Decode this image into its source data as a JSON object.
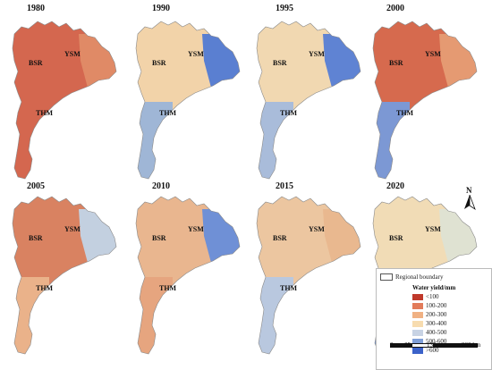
{
  "panels": [
    {
      "year": "1980",
      "labels": [
        "BSR",
        "YSM",
        "THM"
      ],
      "upper": "#d4674f",
      "lower": "#d4674f",
      "mid": "#e08a66"
    },
    {
      "year": "1990",
      "labels": [
        "BSR",
        "YSM",
        "THM"
      ],
      "upper": "#f2d3a9",
      "lower": "#9fb6d6",
      "mid": "#5a7fd1"
    },
    {
      "year": "1995",
      "labels": [
        "BSR",
        "YSM",
        "THM"
      ],
      "upper": "#f1d8b1",
      "lower": "#a9bcda",
      "mid": "#5f83d3"
    },
    {
      "year": "2000",
      "labels": [
        "BSR",
        "YSM",
        "THM"
      ],
      "upper": "#d66a4e",
      "lower": "#7c98d4",
      "mid": "#e59a72"
    },
    {
      "year": "2005",
      "labels": [
        "BSR",
        "YSM",
        "THM"
      ],
      "upper": "#d98261",
      "lower": "#eab28a",
      "mid": "#c3d0e0"
    },
    {
      "year": "2010",
      "labels": [
        "BSR",
        "YSM",
        "THM"
      ],
      "upper": "#e9b68f",
      "lower": "#e6a57f",
      "mid": "#6f90d6"
    },
    {
      "year": "2015",
      "labels": [
        "BSR",
        "YSM",
        "THM"
      ],
      "upper": "#ecc6a0",
      "lower": "#b9c8df",
      "mid": "#e9b88f"
    },
    {
      "year": "2020",
      "labels": [
        "BSR",
        "YSM",
        "THM"
      ],
      "upper": "#f1dcb6",
      "lower": "#6a8fd3",
      "mid": "#dfe2d2"
    }
  ],
  "legend": {
    "boundary_label": "Regional boundary",
    "title": "Water yield/mm",
    "classes": [
      {
        "label": "<100",
        "color": "#c0392b"
      },
      {
        "label": "100-200",
        "color": "#e27b5a"
      },
      {
        "label": "200-300",
        "color": "#f0b183"
      },
      {
        "label": "300-400",
        "color": "#f7dcaf"
      },
      {
        "label": "400-500",
        "color": "#c8d3e4"
      },
      {
        "label": "500-600",
        "color": "#7f9fd8"
      },
      {
        "label": ">600",
        "color": "#3b62c9"
      }
    ]
  },
  "scale_bar": {
    "ticks": [
      "0",
      "65",
      "130",
      "260 km"
    ]
  },
  "north_arrow": {
    "label": "N"
  }
}
